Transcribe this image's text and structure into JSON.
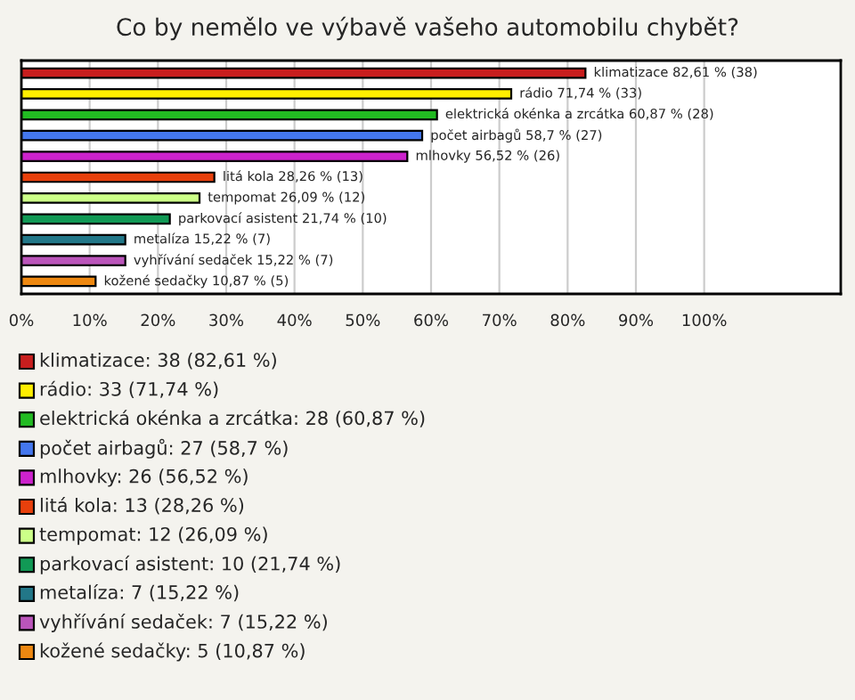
{
  "chart_data": {
    "type": "bar",
    "orientation": "horizontal",
    "title": "Co by nemělo ve výbavě vašeho automobilu chybět?",
    "categories": [
      null,
      null,
      null,
      null,
      null,
      null,
      null,
      null,
      null,
      null,
      null
    ],
    "values": [
      82.61,
      71.74,
      60.87,
      58.7,
      56.52,
      28.26,
      26.09,
      21.74,
      15.22,
      15.22,
      10.87
    ],
    "colors": [
      "#c81e1e",
      "#ffee00",
      "#22bb22",
      "#4477ee",
      "#cc22cc",
      "#e8400c",
      "#ccff88",
      "#119955",
      "#227788",
      "#bb55bb",
      "#ee8811"
    ],
    "value_labels": [
      "klimatizace 82,61 % (38)",
      "rádio 71,74 % (33)",
      "elektrická okénka a zrcátka 60,87 % (28)",
      "počet airbagů 58,7 % (27)",
      "mlhovky 56,52 % (26)",
      "litá kola 28,26 % (13)",
      "tempomat 26,09 % (12)",
      "parkovací asistent 21,74 % (10)",
      "metalíza 15,22 % (7)",
      "vyhřívání sedaček 15,22 % (7)",
      "kožené sedačky 10,87 % (5)"
    ],
    "xlim": [
      0,
      120
    ],
    "xticks": [
      {
        "value": 0,
        "label": "0%"
      },
      {
        "value": 10,
        "label": "10%"
      },
      {
        "value": 20,
        "label": "20%"
      },
      {
        "value": 30,
        "label": "30%"
      },
      {
        "value": 40,
        "label": "40%"
      },
      {
        "value": 50,
        "label": "50%"
      },
      {
        "value": 60,
        "label": "60%"
      },
      {
        "value": 70,
        "label": "70%"
      },
      {
        "value": 80,
        "label": "80%"
      },
      {
        "value": 90,
        "label": "90%"
      },
      {
        "value": 100,
        "label": "100%"
      }
    ],
    "grid": "x",
    "annotations": [
      "klimatizace: 38 (82,61 %)",
      "rádio: 33 (71,74 %)",
      "elektrická okénka a zrcátka: 28 (60,87 %)",
      "počet airbagů: 27 (58,7 %)",
      "mlhovky: 26 (56,52 %)",
      "litá kola: 13 (28,26 %)",
      "tempomat: 12 (26,09 %)",
      "parkovací asistent: 10 (21,74 %)",
      "metalíza: 7 (15,22 %)",
      "vyhřívání sedaček: 7 (15,22 %)",
      "kožené sedačky: 5 (10,87 %)"
    ]
  }
}
